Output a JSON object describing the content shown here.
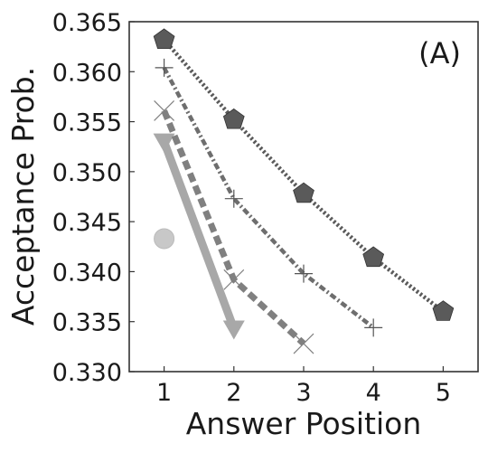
{
  "chart_data": {
    "type": "line",
    "title": "",
    "annotation": "(A)",
    "xlabel": "Answer Position",
    "ylabel": "Acceptance Prob.",
    "xlim": [
      0.5,
      5.5
    ],
    "ylim": [
      0.33,
      0.365
    ],
    "xticks": [
      1,
      2,
      3,
      4,
      5
    ],
    "xtick_labels": [
      "1",
      "2",
      "3",
      "4",
      "5"
    ],
    "yticks": [
      0.33,
      0.335,
      0.34,
      0.345,
      0.35,
      0.355,
      0.36,
      0.365
    ],
    "ytick_labels": [
      "0.330",
      "0.335",
      "0.340",
      "0.345",
      "0.350",
      "0.355",
      "0.360",
      "0.365"
    ],
    "grid": false,
    "legend": "none",
    "series": [
      {
        "x": [
          1
        ],
        "y": [
          0.3433
        ],
        "marker": "circle",
        "line_style": "none",
        "color": "#c8c8c8"
      },
      {
        "x": [
          1,
          2
        ],
        "y": [
          0.353,
          0.3343
        ],
        "marker": "triangle-down",
        "line_style": "solid",
        "color": "#a8a8a8"
      },
      {
        "x": [
          1,
          2,
          3
        ],
        "y": [
          0.3561,
          0.3392,
          0.3328
        ],
        "marker": "x",
        "line_style": "dashed",
        "color": "#808080"
      },
      {
        "x": [
          1,
          2,
          3,
          4
        ],
        "y": [
          0.3604,
          0.3473,
          0.3398,
          0.3344
        ],
        "marker": "plus",
        "line_style": "dashdot",
        "color": "#6e6e6e"
      },
      {
        "x": [
          1,
          2,
          3,
          4,
          5
        ],
        "y": [
          0.3632,
          0.3552,
          0.3478,
          0.3414,
          0.336
        ],
        "marker": "pentagon",
        "line_style": "dotted",
        "color": "#5a5a5a"
      }
    ]
  }
}
